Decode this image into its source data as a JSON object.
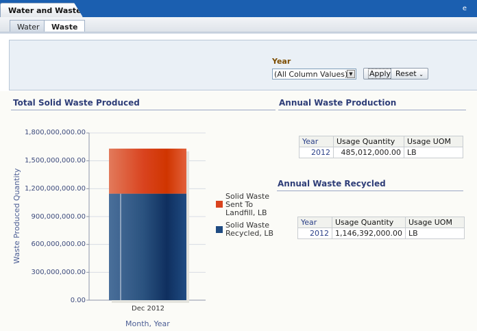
{
  "page_tab": {
    "label": "Water and Waste",
    "menu_icon": "e"
  },
  "sub_tabs": [
    {
      "label": "Water",
      "active": false
    },
    {
      "label": "Waste",
      "active": true
    }
  ],
  "prompts": {
    "year_label": "Year",
    "year_value": "(All Column Values)",
    "apply_label": "Apply",
    "reset_label": "Reset"
  },
  "chart_section": {
    "title": "Total Solid Waste Produced"
  },
  "chart_data": {
    "type": "bar",
    "stacked": true,
    "categories": [
      "Dec 2012"
    ],
    "series": [
      {
        "name": "Solid Waste Sent To Landfill, LB",
        "values": [
          485012000
        ],
        "color": "#d9431e"
      },
      {
        "name": "Solid Waste Recycled, LB",
        "values": [
          1146392000
        ],
        "color": "#1f4b82"
      }
    ],
    "ylim": [
      0,
      1800000000
    ],
    "yticks": [
      "0.00",
      "300,000,000.00",
      "600,000,000.00",
      "900,000,000.00",
      "1,200,000,000.00",
      "1,500,000,000.00",
      "1,800,000,000.00"
    ],
    "xlabel": "Month, Year",
    "ylabel": "Waste Produced Quantity",
    "legend_position": "right"
  },
  "legend": [
    {
      "label_lines": [
        "Solid Waste",
        "Sent To",
        "Landfill, LB"
      ]
    },
    {
      "label_lines": [
        "Solid Waste",
        "Recycled, LB"
      ]
    }
  ],
  "annual_production": {
    "title": "Annual Waste Production",
    "columns": [
      "Year",
      "Usage Quantity",
      "Usage UOM"
    ],
    "rows": [
      {
        "year": "2012",
        "quantity": "485,012,000.00",
        "uom": "LB"
      }
    ]
  },
  "annual_recycled": {
    "title": "Annual Waste Recycled",
    "columns": [
      "Year",
      "Usage Quantity",
      "Usage UOM"
    ],
    "rows": [
      {
        "year": "2012",
        "quantity": "1,146,392,000.00",
        "uom": "LB"
      }
    ]
  },
  "colors": {
    "header_blue": "#1b5fb0",
    "title_navy": "#2f3e78",
    "landfill": "#d9431e",
    "recycled": "#1f4b82"
  }
}
